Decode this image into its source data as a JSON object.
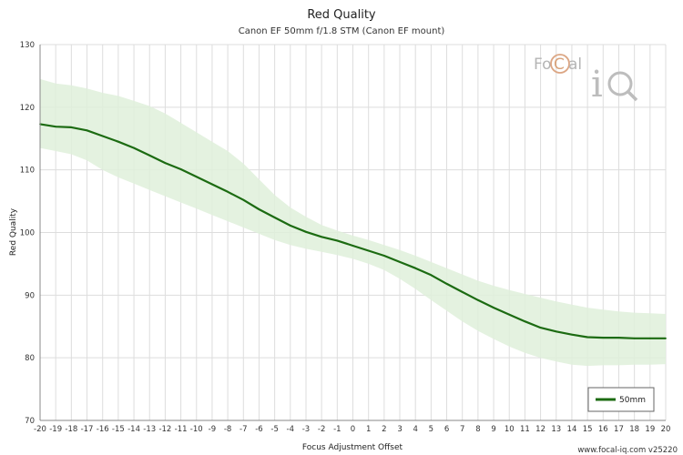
{
  "header": {
    "title": "Red Quality",
    "subtitle": "Canon EF 50mm f/1.8 STM (Canon EF mount)"
  },
  "footer": {
    "credit": "www.focal-iq.com v25220"
  },
  "logo": {
    "text": "FoCal iQ"
  },
  "colors": {
    "line": "#1c6b12",
    "band": "#dff0db",
    "grid": "#dddddd"
  },
  "chart_data": {
    "type": "line",
    "title": "Red Quality",
    "subtitle": "Canon EF 50mm f/1.8 STM (Canon EF mount)",
    "xlabel": "Focus Adjustment Offset",
    "ylabel": "Red Quality",
    "xlim": [
      -20,
      20
    ],
    "ylim": [
      70,
      130
    ],
    "x_ticks": [
      -20,
      -19,
      -18,
      -17,
      -16,
      -15,
      -14,
      -13,
      -12,
      -11,
      -10,
      -9,
      -8,
      -7,
      -6,
      -5,
      -4,
      -3,
      -2,
      -1,
      0,
      1,
      2,
      3,
      4,
      5,
      6,
      7,
      8,
      9,
      10,
      11,
      12,
      13,
      14,
      15,
      16,
      17,
      18,
      19,
      20
    ],
    "y_ticks": [
      70,
      80,
      90,
      100,
      110,
      120,
      130
    ],
    "grid": true,
    "legend": {
      "position": "bottom-right",
      "entries": [
        "50mm"
      ]
    },
    "x": [
      -20,
      -19,
      -18,
      -17,
      -16,
      -15,
      -14,
      -13,
      -12,
      -11,
      -10,
      -9,
      -8,
      -7,
      -6,
      -5,
      -4,
      -3,
      -2,
      -1,
      0,
      1,
      2,
      3,
      4,
      5,
      6,
      7,
      8,
      9,
      10,
      11,
      12,
      13,
      14,
      15,
      16,
      17,
      18,
      19,
      20
    ],
    "series": [
      {
        "name": "50mm",
        "values": [
          117.3,
          116.9,
          116.8,
          116.3,
          115.4,
          114.5,
          113.5,
          112.3,
          111.1,
          110.1,
          108.9,
          107.7,
          106.5,
          105.2,
          103.7,
          102.4,
          101.1,
          100.1,
          99.3,
          98.7,
          97.9,
          97.1,
          96.3,
          95.3,
          94.3,
          93.2,
          91.8,
          90.5,
          89.2,
          88.0,
          86.9,
          85.8,
          84.8,
          84.2,
          83.7,
          83.3,
          83.2,
          83.2,
          83.1,
          83.1,
          83.1
        ],
        "band_upper": [
          124.5,
          123.8,
          123.5,
          123.0,
          122.3,
          121.8,
          121.0,
          120.2,
          119.0,
          117.5,
          116.0,
          114.5,
          113.0,
          111.0,
          108.5,
          106.0,
          104.0,
          102.5,
          101.2,
          100.3,
          99.5,
          98.8,
          98.0,
          97.2,
          96.3,
          95.3,
          94.3,
          93.3,
          92.3,
          91.5,
          90.8,
          90.2,
          89.6,
          89.0,
          88.5,
          88.0,
          87.7,
          87.4,
          87.2,
          87.1,
          87.0
        ],
        "band_lower": [
          113.5,
          113.0,
          112.5,
          111.5,
          110.0,
          108.8,
          107.8,
          106.8,
          105.8,
          104.8,
          103.8,
          102.8,
          101.8,
          100.8,
          99.8,
          98.8,
          98.0,
          97.4,
          96.9,
          96.4,
          95.8,
          95.0,
          94.0,
          92.6,
          91.0,
          89.2,
          87.5,
          85.8,
          84.3,
          83.0,
          81.8,
          80.8,
          80.0,
          79.4,
          78.9,
          78.7,
          78.8,
          78.8,
          78.9,
          78.9,
          79.0
        ]
      }
    ]
  }
}
